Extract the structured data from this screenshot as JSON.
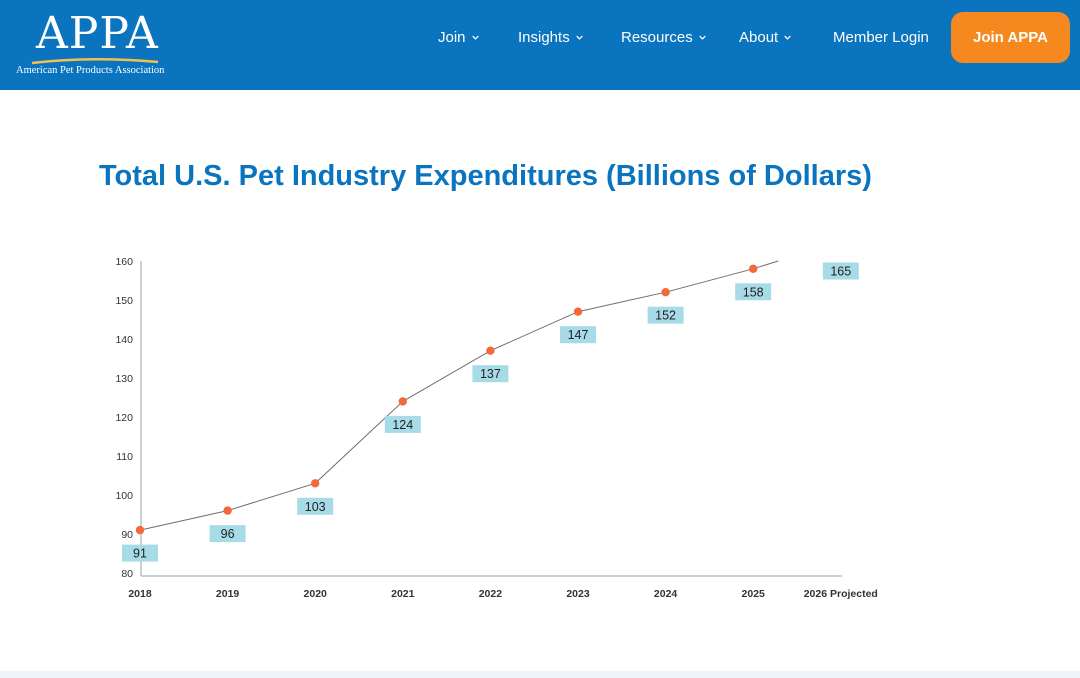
{
  "logo": {
    "name": "APPA",
    "subtitle": "American Pet Products Association"
  },
  "nav": {
    "items": [
      {
        "label": "Join",
        "has_dropdown": true
      },
      {
        "label": "Insights",
        "has_dropdown": true
      },
      {
        "label": "Resources",
        "has_dropdown": true
      },
      {
        "label": "About",
        "has_dropdown": true
      },
      {
        "label": "Member Login",
        "has_dropdown": false
      }
    ],
    "cta_label": "Join APPA"
  },
  "colors": {
    "brand_blue": "#0a74bf",
    "cta_orange": "#f5891f",
    "point_color": "#f4683a",
    "label_bg": "#a8dbe8"
  },
  "page": {
    "title": "Total U.S. Pet Industry Expenditures (Billions of Dollars)"
  },
  "chart_data": {
    "type": "line",
    "categories": [
      "2018",
      "2019",
      "2020",
      "2021",
      "2022",
      "2023",
      "2024",
      "2025",
      "2026 Projected"
    ],
    "values": [
      91,
      96,
      103,
      124,
      137,
      147,
      152,
      158,
      165
    ],
    "data_labels": [
      "91",
      "96",
      "103",
      "124",
      "137",
      "147",
      "152",
      "158",
      "165"
    ],
    "ylim": [
      80,
      160
    ],
    "yticks": [
      80,
      90,
      100,
      110,
      120,
      130,
      140,
      150,
      160
    ],
    "xlabel": "",
    "ylabel": "",
    "grid": false
  }
}
